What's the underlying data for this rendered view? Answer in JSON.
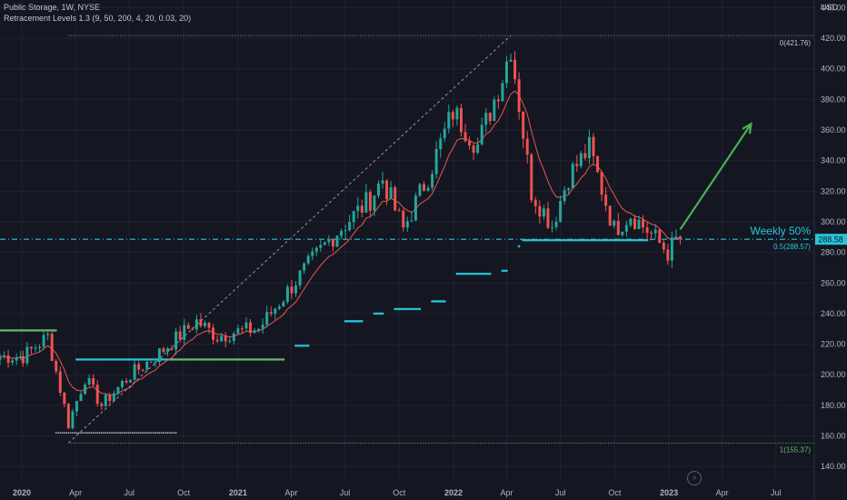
{
  "header": {
    "symbol_line": "Public Storage, 1W, NYSE",
    "indicator_line": "Retracement Levels 1.3 (9, 50, 200, 4, 20, 0.03, 20)"
  },
  "colors": {
    "background": "#141722",
    "grid": "#1f2230",
    "up": "#26a69a",
    "down": "#ef5350",
    "ma": "#ef5350",
    "fib_line": "#26c6da",
    "arrow": "#4caf50",
    "dots_green": "#66bb6a",
    "dots_cyan": "#26c6da",
    "axis_text": "#b2b5be"
  },
  "chart_data": {
    "type": "candlestick",
    "y_axis": {
      "unit_label": "USD",
      "range": [
        130,
        445
      ],
      "ticks": [
        140,
        160,
        180,
        200,
        220,
        240,
        260,
        280,
        300,
        320,
        340,
        360,
        380,
        400,
        420,
        440
      ]
    },
    "x_axis": {
      "range": [
        "2019-11-25",
        "2023-09-04"
      ],
      "ticks": [
        {
          "date": "2020-01-01",
          "label": "2020"
        },
        {
          "date": "2020-04-01",
          "label": "Apr"
        },
        {
          "date": "2020-07-01",
          "label": "Jul"
        },
        {
          "date": "2020-10-01",
          "label": "Oct"
        },
        {
          "date": "2021-01-01",
          "label": "2021"
        },
        {
          "date": "2021-04-01",
          "label": "Apr"
        },
        {
          "date": "2021-07-01",
          "label": "Jul"
        },
        {
          "date": "2021-10-01",
          "label": "Oct"
        },
        {
          "date": "2022-01-01",
          "label": "2022"
        },
        {
          "date": "2022-04-01",
          "label": "Apr"
        },
        {
          "date": "2022-07-01",
          "label": "Jul"
        },
        {
          "date": "2022-10-01",
          "label": "Oct"
        },
        {
          "date": "2023-01-01",
          "label": "2023"
        },
        {
          "date": "2023-04-01",
          "label": "Apr"
        },
        {
          "date": "2023-07-01",
          "label": "Jul"
        }
      ]
    },
    "last_price": 288.58,
    "fib_levels": [
      {
        "label": "0(421.76)",
        "value": 421.76
      },
      {
        "label": "0.5(288.57)",
        "value": 288.57
      },
      {
        "label": "1(155.37)",
        "value": 155.37
      }
    ],
    "annotation_text": "Weekly 50%",
    "trend_arrow": {
      "from": [
        "2023-01-20",
        295
      ],
      "to": [
        "2023-05-20",
        364
      ]
    },
    "diagonal_line": {
      "from": [
        "2020-03-20",
        155.37
      ],
      "to": [
        "2022-04-08",
        421.76
      ]
    },
    "key_points": [
      {
        "date": "2019-11-25",
        "price": 212
      },
      {
        "date": "2020-01-03",
        "price": 212
      },
      {
        "date": "2020-02-14",
        "price": 225
      },
      {
        "date": "2020-03-20",
        "price": 168
      },
      {
        "date": "2020-04-17",
        "price": 198
      },
      {
        "date": "2020-05-15",
        "price": 180
      },
      {
        "date": "2020-07-03",
        "price": 200
      },
      {
        "date": "2020-08-14",
        "price": 212
      },
      {
        "date": "2020-10-23",
        "price": 235
      },
      {
        "date": "2020-11-27",
        "price": 225
      },
      {
        "date": "2020-12-25",
        "price": 228
      },
      {
        "date": "2021-02-05",
        "price": 230
      },
      {
        "date": "2021-04-02",
        "price": 258
      },
      {
        "date": "2021-05-14",
        "price": 278
      },
      {
        "date": "2021-06-04",
        "price": 288
      },
      {
        "date": "2021-08-13",
        "price": 315
      },
      {
        "date": "2021-09-03",
        "price": 328
      },
      {
        "date": "2021-10-08",
        "price": 295
      },
      {
        "date": "2021-11-19",
        "price": 330
      },
      {
        "date": "2021-12-31",
        "price": 372
      },
      {
        "date": "2022-02-11",
        "price": 350
      },
      {
        "date": "2022-03-25",
        "price": 395
      },
      {
        "date": "2022-04-08",
        "price": 415
      },
      {
        "date": "2022-05-13",
        "price": 320
      },
      {
        "date": "2022-06-17",
        "price": 298
      },
      {
        "date": "2022-07-15",
        "price": 330
      },
      {
        "date": "2022-08-19",
        "price": 348
      },
      {
        "date": "2022-09-30",
        "price": 295
      },
      {
        "date": "2022-10-28",
        "price": 305
      },
      {
        "date": "2022-12-02",
        "price": 292
      },
      {
        "date": "2022-12-30",
        "price": 280
      },
      {
        "date": "2023-01-20",
        "price": 292
      }
    ],
    "dot_series": [
      {
        "color": "green",
        "from": "2019-11-25",
        "to": "2020-02-28",
        "value": 229
      },
      {
        "color": "cyan",
        "from": "2020-04-03",
        "to": "2020-09-11",
        "value": 210
      },
      {
        "color": "green",
        "from": "2020-09-11",
        "to": "2021-03-19",
        "value": 210
      },
      {
        "color": "cyan",
        "from": "2021-04-09",
        "to": "2021-04-30",
        "value": 219
      },
      {
        "color": "cyan",
        "from": "2021-07-02",
        "to": "2021-07-30",
        "value": 235
      },
      {
        "color": "cyan",
        "from": "2021-08-20",
        "to": "2021-09-03",
        "value": 240
      },
      {
        "color": "cyan",
        "from": "2021-09-24",
        "to": "2021-11-05",
        "value": 243
      },
      {
        "color": "cyan",
        "from": "2021-11-26",
        "to": "2021-12-17",
        "value": 248
      },
      {
        "color": "cyan",
        "from": "2022-01-07",
        "to": "2022-03-04",
        "value": 266
      },
      {
        "color": "cyan",
        "from": "2022-03-25",
        "to": "2022-04-01",
        "value": 268
      },
      {
        "color": "cyan",
        "from": "2022-04-22",
        "to": "2022-04-22",
        "value": 284
      },
      {
        "color": "cyan",
        "from": "2022-04-29",
        "to": "2022-11-25",
        "value": 288
      },
      {
        "color": "white",
        "from": "2020-02-28",
        "to": "2020-09-18",
        "value": 162
      }
    ]
  }
}
